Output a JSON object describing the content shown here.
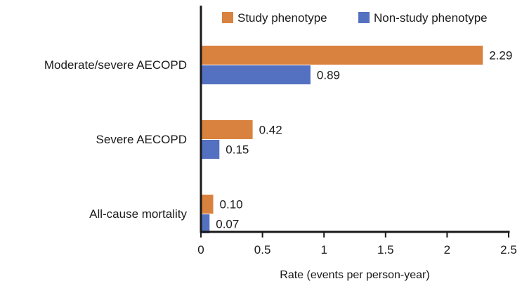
{
  "chart_data": {
    "type": "bar",
    "orientation": "horizontal",
    "categories": [
      "Moderate/severe AECOPD",
      "Severe AECOPD",
      "All-cause mortality"
    ],
    "series": [
      {
        "name": "Study phenotype",
        "color": "#D9823F",
        "values": [
          2.29,
          0.42,
          0.1
        ],
        "labels": [
          "2.29",
          "0.42",
          "0.10"
        ]
      },
      {
        "name": "Non-study phenotype",
        "color": "#5470C0",
        "values": [
          0.89,
          0.15,
          0.07
        ],
        "labels": [
          "0.89",
          "0.15",
          "0.07"
        ]
      }
    ],
    "xlabel": "Rate (events per person-year)",
    "xlim": [
      0,
      2.5
    ],
    "xticks": [
      0,
      0.5,
      1,
      1.5,
      2,
      2.5
    ],
    "xtick_labels": [
      "0",
      "0.5",
      "1",
      "1.5",
      "2",
      "2.5"
    ],
    "legend_position": "top",
    "grid": false
  }
}
